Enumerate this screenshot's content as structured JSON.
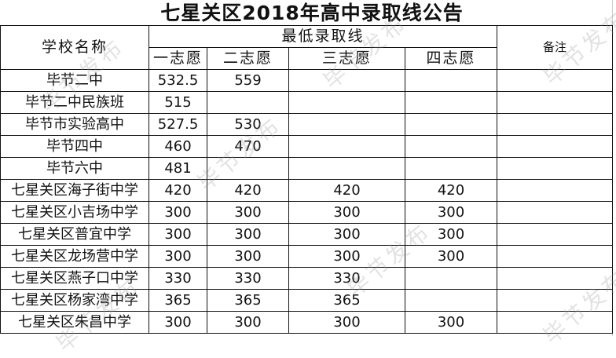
{
  "title": "七星关区2018年高中录取线公告",
  "headers": {
    "school": "学校名称",
    "min_score": "最低录取线",
    "choices": [
      "一志愿",
      "二志愿",
      "三志愿",
      "四志愿"
    ],
    "note": "备注"
  },
  "rows": [
    {
      "school": "毕节二中",
      "scores": [
        "532.5",
        "559",
        "",
        ""
      ]
    },
    {
      "school": "毕节二中民族班",
      "scores": [
        "515",
        "",
        "",
        ""
      ]
    },
    {
      "school": "毕节市实验高中",
      "scores": [
        "527.5",
        "530",
        "",
        ""
      ]
    },
    {
      "school": "毕节四中",
      "scores": [
        "460",
        "470",
        "",
        ""
      ]
    },
    {
      "school": "毕节六中",
      "scores": [
        "481",
        "",
        "",
        ""
      ]
    },
    {
      "school": "七星关区海子街中学",
      "scores": [
        "420",
        "420",
        "420",
        "420"
      ]
    },
    {
      "school": "七星关区小吉场中学",
      "scores": [
        "300",
        "300",
        "300",
        "300"
      ]
    },
    {
      "school": "七星关区普宜中学",
      "scores": [
        "300",
        "300",
        "300",
        "300"
      ]
    },
    {
      "school": "七星关区龙场营中学",
      "scores": [
        "300",
        "300",
        "300",
        "300"
      ]
    },
    {
      "school": "七星关区燕子口中学",
      "scores": [
        "330",
        "330",
        "330",
        ""
      ]
    },
    {
      "school": "七星关区杨家湾中学",
      "scores": [
        "365",
        "365",
        "365",
        ""
      ]
    },
    {
      "school": "七星关区朱昌中学",
      "scores": [
        "300",
        "300",
        "300",
        "300"
      ]
    }
  ],
  "watermark": "毕节发布"
}
